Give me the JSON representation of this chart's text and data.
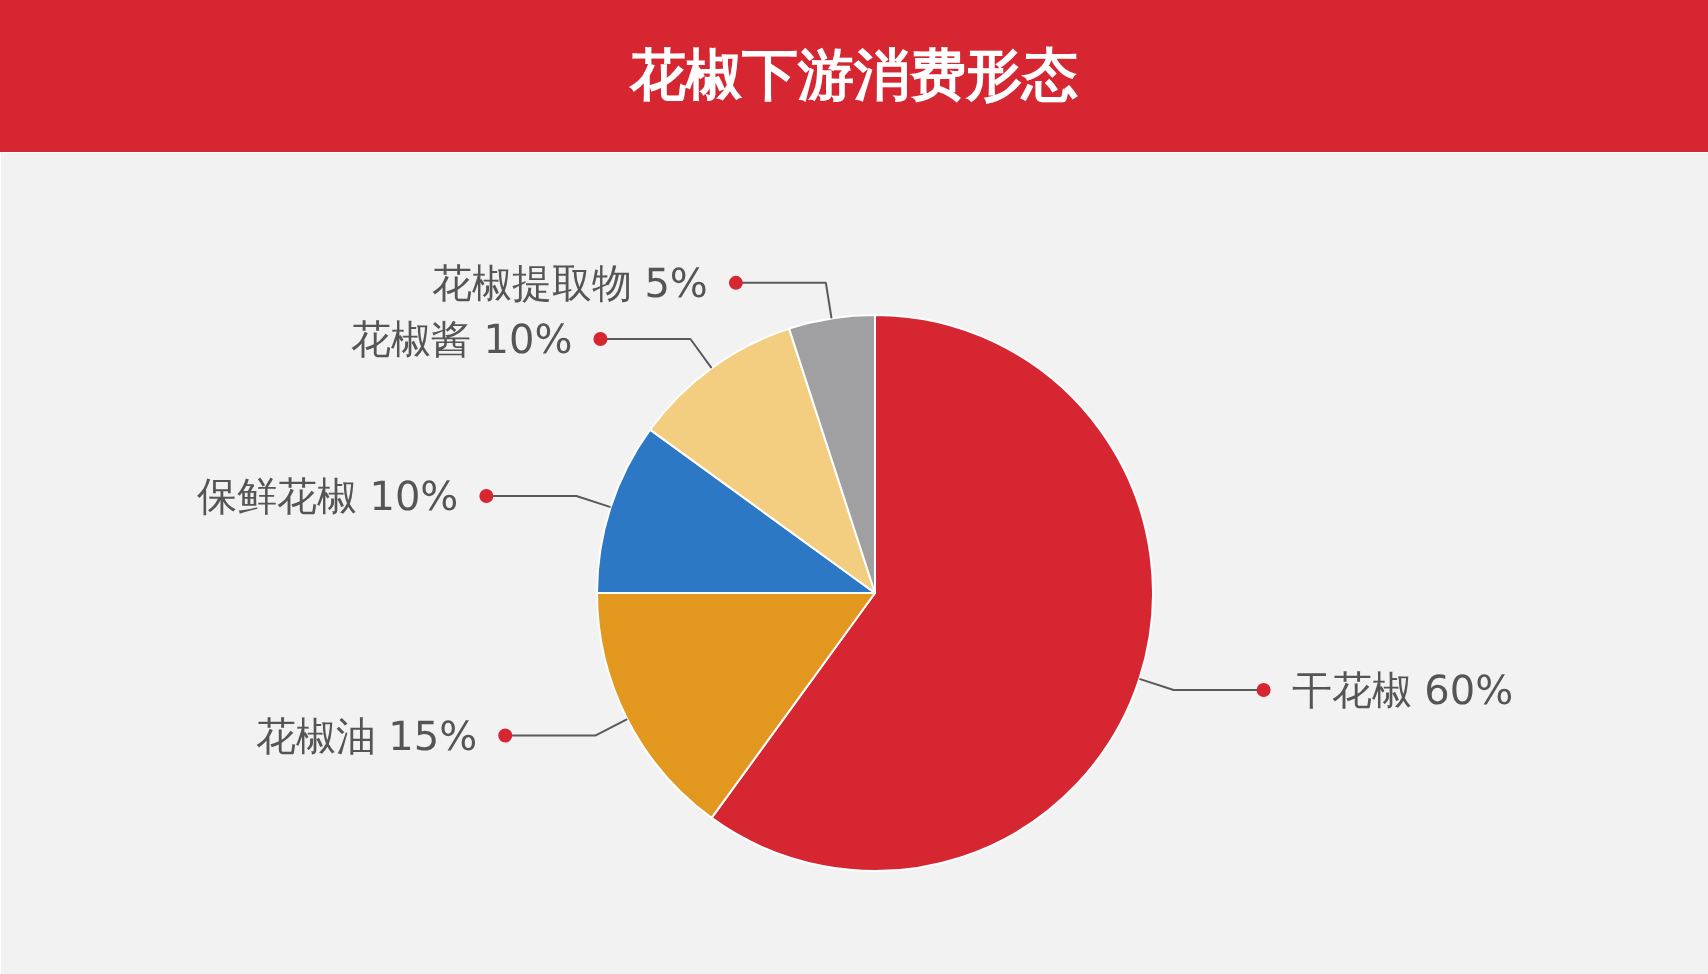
{
  "chart_data": {
    "type": "pie",
    "title": "花椒下游消费形态",
    "categories": [
      "干花椒",
      "花椒油",
      "保鲜花椒",
      "花椒酱",
      "花椒提取物"
    ],
    "values": [
      60,
      15,
      10,
      10,
      5
    ],
    "colors": [
      "#d62631",
      "#e2971f",
      "#2c78c4",
      "#f3cd80",
      "#a0a0a2"
    ],
    "value_labels": [
      "60%",
      "15%",
      "10%",
      "10%",
      "5%"
    ]
  }
}
